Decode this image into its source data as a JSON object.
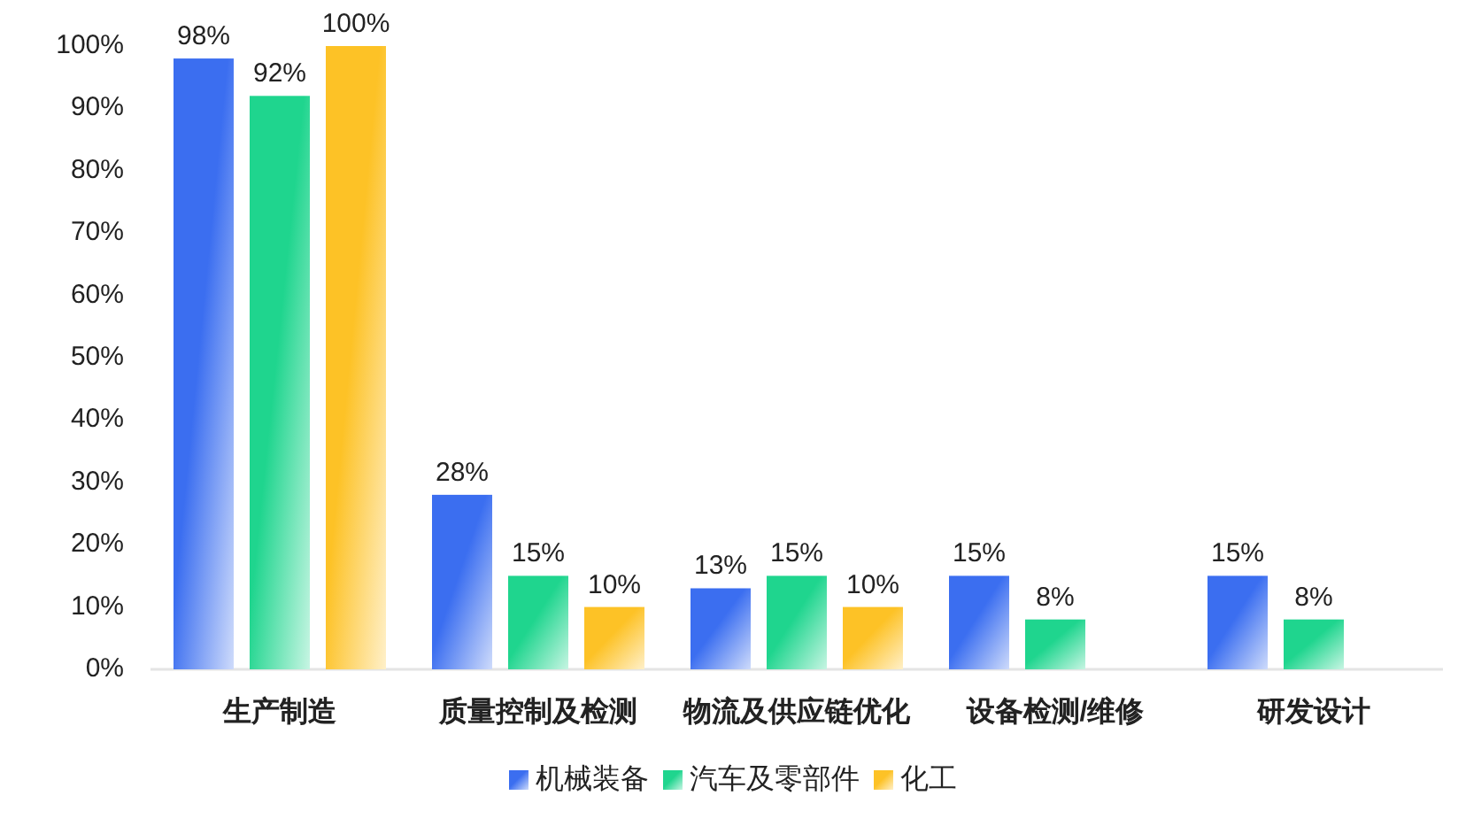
{
  "chart_data": {
    "type": "bar",
    "categories": [
      "生产制造",
      "质量控制及检测",
      "物流及供应链优化",
      "设备检测/维修",
      "研发设计"
    ],
    "series": [
      {
        "name": "机械装备",
        "color": "#3b6ef0",
        "values": [
          98,
          28,
          13,
          15,
          15
        ],
        "value_labels": [
          "98%",
          "28%",
          "13%",
          "15%",
          "15%"
        ]
      },
      {
        "name": "汽车及零部件",
        "color": "#1fd58e",
        "values": [
          92,
          15,
          15,
          8,
          8
        ],
        "value_labels": [
          "92%",
          "15%",
          "15%",
          "8%",
          "8%"
        ]
      },
      {
        "name": "化工",
        "color": "#fdc226",
        "values": [
          100,
          10,
          10,
          null,
          null
        ],
        "value_labels": [
          "100%",
          "10%",
          "10%",
          null,
          null
        ]
      }
    ],
    "ylim": [
      0,
      100
    ],
    "yticks": [
      {
        "value": 0,
        "label": "0%"
      },
      {
        "value": 10,
        "label": "10%"
      },
      {
        "value": 20,
        "label": "20%"
      },
      {
        "value": 30,
        "label": "30%"
      },
      {
        "value": 40,
        "label": "40%"
      },
      {
        "value": 50,
        "label": "50%"
      },
      {
        "value": 60,
        "label": "60%"
      },
      {
        "value": 70,
        "label": "70%"
      },
      {
        "value": 80,
        "label": "80%"
      },
      {
        "value": 90,
        "label": "90%"
      },
      {
        "value": 100,
        "label": "100%"
      }
    ],
    "legend": "bottom"
  }
}
